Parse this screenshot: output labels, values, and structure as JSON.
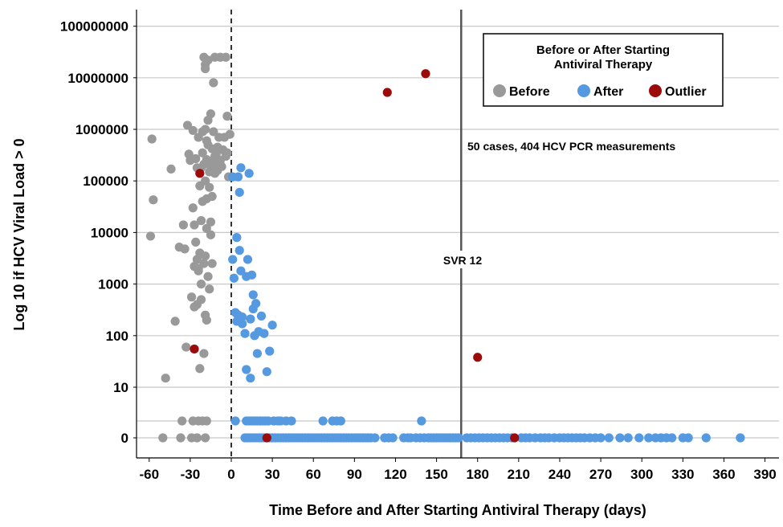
{
  "chart_data": {
    "type": "scatter",
    "xlabel": "Time Before and After Starting Antiviral Therapy (days)",
    "ylabel": "Log 10 if HCV Viral Load > 0",
    "x_ticks": [
      -60,
      -30,
      0,
      30,
      60,
      90,
      120,
      150,
      180,
      210,
      240,
      270,
      300,
      330,
      360,
      390
    ],
    "xlim": [
      -67,
      397
    ],
    "y_scale": "log10 (zero and low values on separate bottom rows)",
    "y_ticks": [
      {
        "label": "0",
        "value": 0
      },
      {
        "label": "10",
        "value": 10
      },
      {
        "label": "100",
        "value": 100
      },
      {
        "label": "1000",
        "value": 1000
      },
      {
        "label": "10000",
        "value": 10000
      },
      {
        "label": "100000",
        "value": 100000
      },
      {
        "label": "1000000",
        "value": 1000000
      },
      {
        "label": "10000000",
        "value": 10000000
      },
      {
        "label": "100000000",
        "value": 100000000
      }
    ],
    "low_row_value": 2,
    "grid": "horizontal",
    "legend": {
      "title": "Before or After Starting Antiviral Therapy",
      "title_lines": [
        "Before or After Starting",
        "Antiviral Therapy"
      ],
      "placement": "top-right",
      "items": [
        "Before",
        "After",
        "Outlier"
      ]
    },
    "annotations": {
      "cases": "50 cases, 404 HCV PCR measurements",
      "svr": "SVR 12",
      "svr_x": 168,
      "baseline_x": 0
    },
    "series": [
      {
        "name": "Before",
        "color": "#999999",
        "points": [
          [
            -58,
            650000
          ],
          [
            -57,
            43000
          ],
          [
            -59,
            8500
          ],
          [
            -48,
            15
          ],
          [
            -44,
            170000
          ],
          [
            -41,
            190
          ],
          [
            -38,
            5200
          ],
          [
            -35,
            14000
          ],
          [
            -34,
            4800
          ],
          [
            -33,
            60
          ],
          [
            -32,
            1200000
          ],
          [
            -31,
            330000
          ],
          [
            -30,
            250000
          ],
          [
            -29,
            560
          ],
          [
            -28,
            950000
          ],
          [
            -28,
            30000
          ],
          [
            -27,
            14000
          ],
          [
            -27,
            2200
          ],
          [
            -27,
            360
          ],
          [
            -26,
            6500
          ],
          [
            -26,
            270000
          ],
          [
            -25,
            400
          ],
          [
            -25,
            180000
          ],
          [
            -25,
            3000
          ],
          [
            -24,
            700000
          ],
          [
            -24,
            2000
          ],
          [
            -24,
            1800
          ],
          [
            -23,
            4000
          ],
          [
            -23,
            23
          ],
          [
            -23,
            80000
          ],
          [
            -22,
            180000
          ],
          [
            -22,
            1000
          ],
          [
            -22,
            500
          ],
          [
            -22,
            17000
          ],
          [
            -21,
            350000
          ],
          [
            -21,
            900000
          ],
          [
            -21,
            40000
          ],
          [
            -20,
            25000000
          ],
          [
            -20,
            210000
          ],
          [
            -20,
            2500
          ],
          [
            -20,
            45
          ],
          [
            -19,
            18000000
          ],
          [
            -19,
            15000000
          ],
          [
            -19,
            100000
          ],
          [
            -19,
            1000000
          ],
          [
            -19,
            3500
          ],
          [
            -19,
            250
          ],
          [
            -18,
            600000
          ],
          [
            -18,
            260000
          ],
          [
            -18,
            45000
          ],
          [
            -18,
            12000
          ],
          [
            -18,
            200
          ],
          [
            -17,
            22000000
          ],
          [
            -17,
            1500000
          ],
          [
            -17,
            1400
          ],
          [
            -17,
            500000
          ],
          [
            -16,
            150000
          ],
          [
            -16,
            800
          ],
          [
            -16,
            75000
          ],
          [
            -15,
            2000000
          ],
          [
            -15,
            200000
          ],
          [
            -15,
            16000
          ],
          [
            -15,
            9000
          ],
          [
            -14,
            420000
          ],
          [
            -14,
            210000
          ],
          [
            -14,
            50000
          ],
          [
            -14,
            2500
          ],
          [
            -13,
            900000
          ],
          [
            -13,
            8000000
          ],
          [
            -13,
            250000
          ],
          [
            -12,
            25000000
          ],
          [
            -12,
            300000
          ],
          [
            -12,
            140000
          ],
          [
            -11,
            330000
          ],
          [
            -11,
            210000
          ],
          [
            -10,
            450000
          ],
          [
            -10,
            160000
          ],
          [
            -9,
            700000
          ],
          [
            -9,
            230000
          ],
          [
            -8,
            25000000
          ],
          [
            -8,
            250000
          ],
          [
            -7,
            190000
          ],
          [
            -6,
            400000
          ],
          [
            -5,
            700000
          ],
          [
            -4,
            25000000
          ],
          [
            -4,
            300000
          ],
          [
            -3,
            1800000
          ],
          [
            -3,
            350000
          ],
          [
            -2,
            120000
          ],
          [
            -1,
            800000
          ]
        ],
        "low_points": [
          [
            -50,
            0
          ],
          [
            -37,
            0
          ],
          [
            -29,
            0
          ],
          [
            -25,
            0
          ],
          [
            -19,
            0
          ],
          [
            -36,
            2
          ],
          [
            -28,
            2
          ],
          [
            -24,
            2
          ],
          [
            -21,
            2
          ],
          [
            -18,
            2
          ]
        ]
      },
      {
        "name": "After",
        "color": "#5599e0",
        "points": [
          [
            1,
            120000
          ],
          [
            1,
            3000
          ],
          [
            2,
            1300
          ],
          [
            3,
            280
          ],
          [
            4,
            190
          ],
          [
            4,
            8000
          ],
          [
            5,
            250
          ],
          [
            5,
            120000
          ],
          [
            6,
            60000
          ],
          [
            6,
            4500
          ],
          [
            7,
            1800
          ],
          [
            7,
            180000
          ],
          [
            8,
            230
          ],
          [
            8,
            170
          ],
          [
            10,
            110
          ],
          [
            11,
            22
          ],
          [
            11,
            1400
          ],
          [
            12,
            3000
          ],
          [
            13,
            140000
          ],
          [
            14,
            210
          ],
          [
            14,
            15
          ],
          [
            15,
            1500
          ],
          [
            16,
            620
          ],
          [
            16,
            330
          ],
          [
            17,
            100
          ],
          [
            18,
            420
          ],
          [
            19,
            45
          ],
          [
            20,
            120
          ],
          [
            22,
            240
          ],
          [
            24,
            110
          ],
          [
            26,
            20
          ],
          [
            28,
            50
          ],
          [
            30,
            160
          ]
        ],
        "low_points": [
          [
            3,
            2
          ],
          [
            11,
            2
          ],
          [
            13,
            2
          ],
          [
            15,
            2
          ],
          [
            17,
            2
          ],
          [
            19,
            2
          ],
          [
            21,
            2
          ],
          [
            23,
            2
          ],
          [
            25,
            2
          ],
          [
            27,
            2
          ],
          [
            31,
            2
          ],
          [
            34,
            2
          ],
          [
            36,
            2
          ],
          [
            40,
            2
          ],
          [
            44,
            2
          ],
          [
            67,
            2
          ],
          [
            74,
            2
          ],
          [
            77,
            2
          ],
          [
            80,
            2
          ],
          [
            139,
            2
          ],
          [
            10,
            0
          ],
          [
            12,
            0
          ],
          [
            14,
            0
          ],
          [
            16,
            0
          ],
          [
            18,
            0
          ],
          [
            20,
            0
          ],
          [
            22,
            0
          ],
          [
            24,
            0
          ],
          [
            26,
            0
          ],
          [
            28,
            0
          ],
          [
            30,
            0
          ],
          [
            32,
            0
          ],
          [
            34,
            0
          ],
          [
            36,
            0
          ],
          [
            38,
            0
          ],
          [
            40,
            0
          ],
          [
            42,
            0
          ],
          [
            44,
            0
          ],
          [
            46,
            0
          ],
          [
            48,
            0
          ],
          [
            50,
            0
          ],
          [
            52,
            0
          ],
          [
            54,
            0
          ],
          [
            56,
            0
          ],
          [
            58,
            0
          ],
          [
            60,
            0
          ],
          [
            62,
            0
          ],
          [
            64,
            0
          ],
          [
            66,
            0
          ],
          [
            68,
            0
          ],
          [
            70,
            0
          ],
          [
            72,
            0
          ],
          [
            74,
            0
          ],
          [
            76,
            0
          ],
          [
            78,
            0
          ],
          [
            80,
            0
          ],
          [
            82,
            0
          ],
          [
            84,
            0
          ],
          [
            86,
            0
          ],
          [
            88,
            0
          ],
          [
            90,
            0
          ],
          [
            92,
            0
          ],
          [
            94,
            0
          ],
          [
            96,
            0
          ],
          [
            98,
            0
          ],
          [
            100,
            0
          ],
          [
            102,
            0
          ],
          [
            105,
            0
          ],
          [
            112,
            0
          ],
          [
            115,
            0
          ],
          [
            118,
            0
          ],
          [
            126,
            0
          ],
          [
            129,
            0
          ],
          [
            131,
            0
          ],
          [
            135,
            0
          ],
          [
            138,
            0
          ],
          [
            141,
            0
          ],
          [
            144,
            0
          ],
          [
            146,
            0
          ],
          [
            148,
            0
          ],
          [
            150,
            0
          ],
          [
            152,
            0
          ],
          [
            154,
            0
          ],
          [
            156,
            0
          ],
          [
            158,
            0
          ],
          [
            160,
            0
          ],
          [
            162,
            0
          ],
          [
            164,
            0
          ],
          [
            166,
            0
          ],
          [
            172,
            0
          ],
          [
            175,
            0
          ],
          [
            178,
            0
          ],
          [
            181,
            0
          ],
          [
            184,
            0
          ],
          [
            187,
            0
          ],
          [
            190,
            0
          ],
          [
            193,
            0
          ],
          [
            196,
            0
          ],
          [
            199,
            0
          ],
          [
            202,
            0
          ],
          [
            205,
            0
          ],
          [
            212,
            0
          ],
          [
            215,
            0
          ],
          [
            218,
            0
          ],
          [
            222,
            0
          ],
          [
            226,
            0
          ],
          [
            229,
            0
          ],
          [
            232,
            0
          ],
          [
            236,
            0
          ],
          [
            240,
            0
          ],
          [
            243,
            0
          ],
          [
            246,
            0
          ],
          [
            249,
            0
          ],
          [
            252,
            0
          ],
          [
            255,
            0
          ],
          [
            258,
            0
          ],
          [
            262,
            0
          ],
          [
            266,
            0
          ],
          [
            270,
            0
          ],
          [
            276,
            0
          ],
          [
            284,
            0
          ],
          [
            290,
            0
          ],
          [
            298,
            0
          ],
          [
            305,
            0
          ],
          [
            310,
            0
          ],
          [
            314,
            0
          ],
          [
            318,
            0
          ],
          [
            322,
            0
          ],
          [
            330,
            0
          ],
          [
            334,
            0
          ],
          [
            347,
            0
          ],
          [
            372,
            0
          ]
        ]
      },
      {
        "name": "Outlier",
        "color": "#9c0a0a",
        "points": [
          [
            -23,
            140000
          ],
          [
            -27,
            55
          ],
          [
            114,
            5200000
          ],
          [
            142,
            12000000
          ],
          [
            180,
            38
          ]
        ],
        "low_points": [
          [
            26,
            0
          ],
          [
            207,
            0
          ]
        ]
      }
    ]
  }
}
